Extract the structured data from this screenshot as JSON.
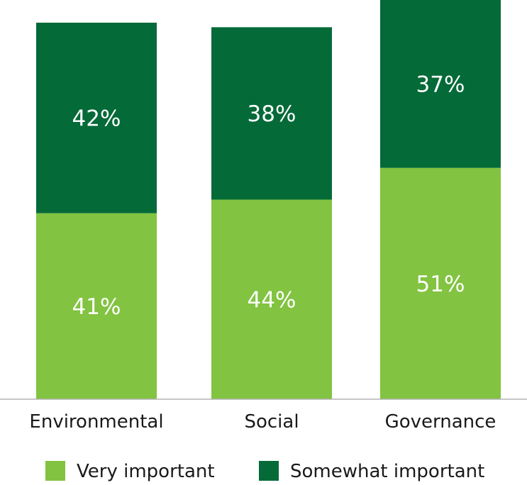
{
  "chart_data": {
    "type": "bar",
    "stacked": true,
    "categories": [
      "Environmental",
      "Social",
      "Governance"
    ],
    "series": [
      {
        "name": "Very important",
        "values": [
          41,
          44,
          51
        ],
        "labels": [
          "41%",
          "44%",
          "51%"
        ],
        "color": "#82c341"
      },
      {
        "name": "Somewhat important",
        "values": [
          42,
          38,
          37
        ],
        "labels": [
          "42%",
          "38%",
          "37%"
        ],
        "color": "#046a38"
      }
    ],
    "ylim": [
      0,
      88
    ],
    "grid": false,
    "legend_position": "bottom",
    "axis_color": "#b3b3b3"
  }
}
